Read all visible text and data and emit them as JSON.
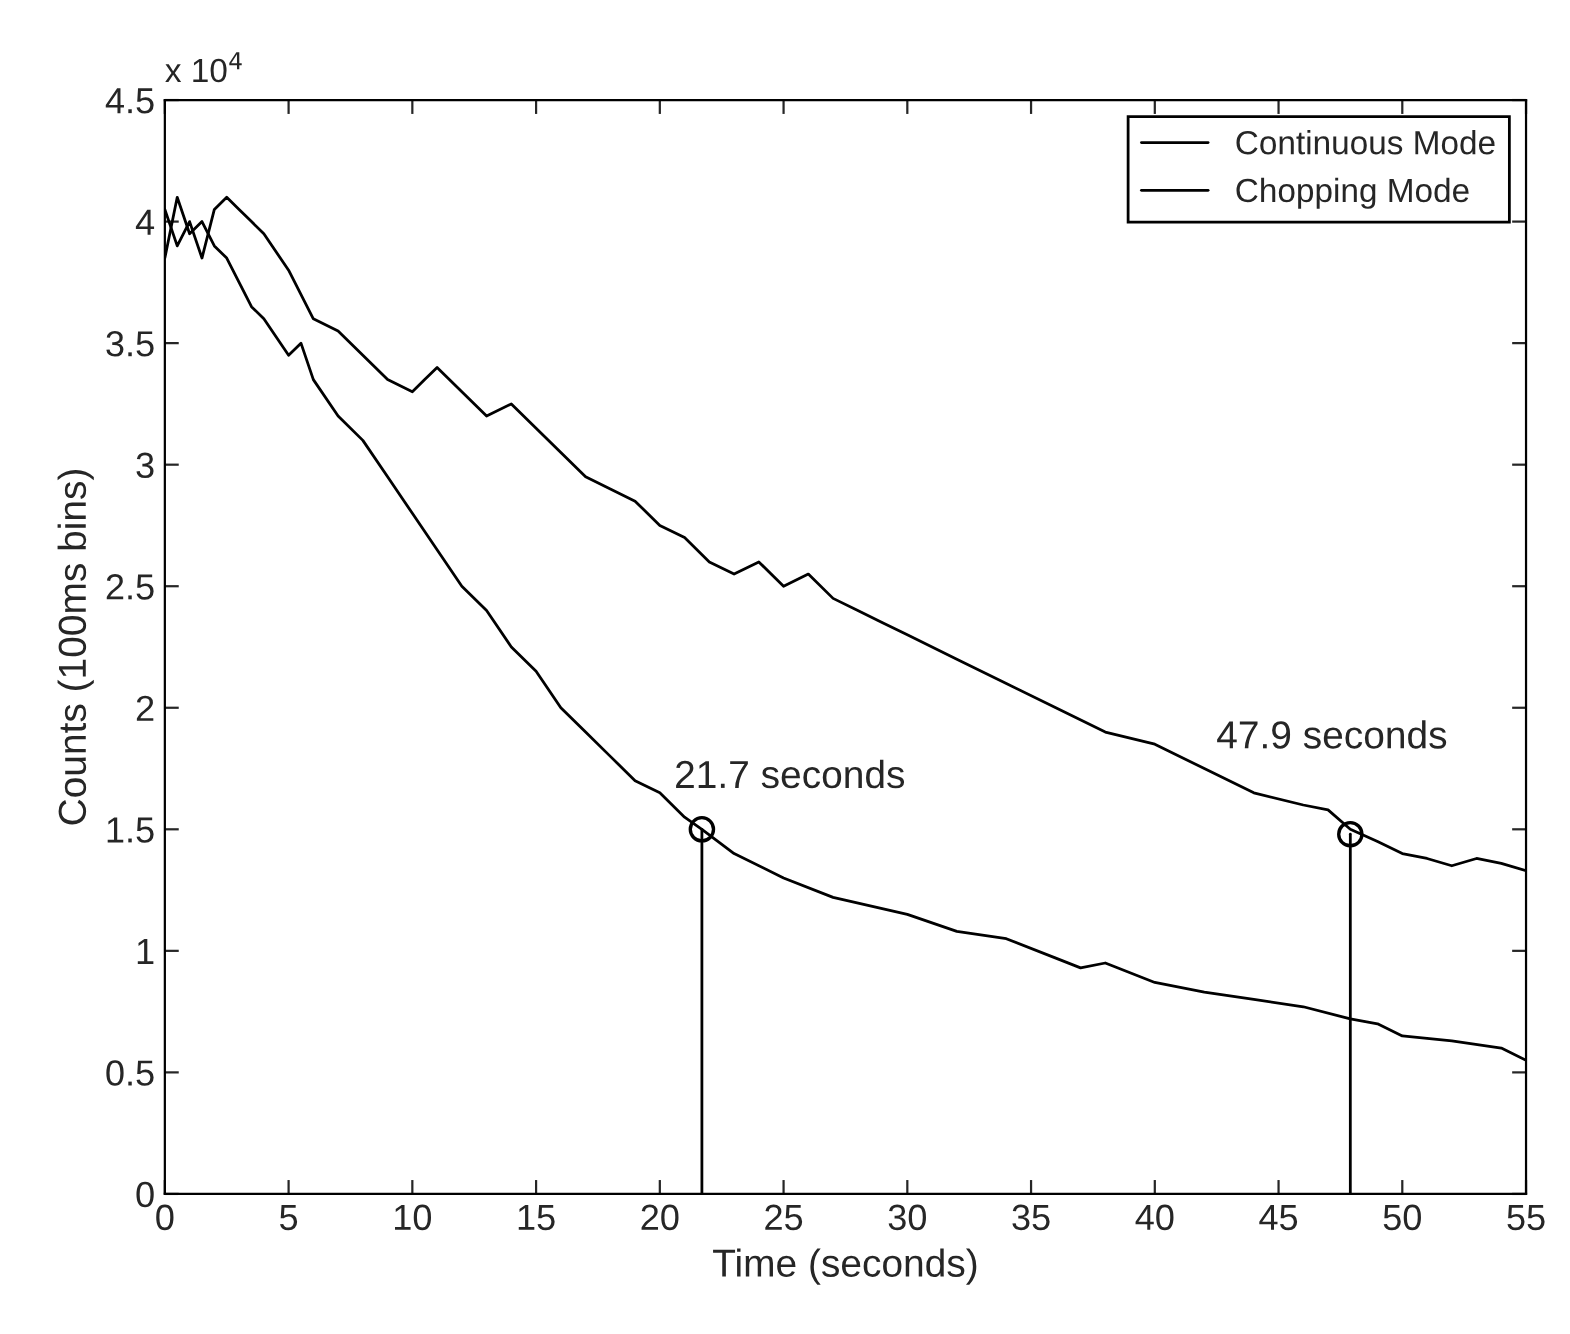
{
  "chart_data": {
    "type": "line",
    "xlabel": "Time (seconds)",
    "ylabel": "Counts (100ms bins)",
    "xlim": [
      0,
      55
    ],
    "xticks": [
      0,
      5,
      10,
      15,
      20,
      25,
      30,
      35,
      40,
      45,
      50,
      55
    ],
    "ylim": [
      0,
      4.5
    ],
    "yticks": [
      0,
      0.5,
      1,
      1.5,
      2,
      2.5,
      3,
      3.5,
      4,
      4.5
    ],
    "grid": false,
    "legend": "top right",
    "marker": "none",
    "line_style": "solid",
    "annotations": [
      "x 10$^{4}$",
      {
        "text": "21.7 seconds",
        "x": 21.7,
        "y": 1.5
      },
      {
        "text": "47.9 seconds",
        "x": 47.9,
        "y": 1.48
      }
    ],
    "series": [
      {
        "name": "Continuous Mode",
        "color": "#000000",
        "x": [
          0,
          0.5,
          1,
          1.5,
          2,
          2.5,
          3,
          3.5,
          4,
          5,
          6,
          7,
          8,
          9,
          10,
          10.5,
          11,
          12,
          13,
          14,
          15,
          16,
          17,
          18,
          19,
          20,
          21,
          22,
          23,
          24,
          25,
          26,
          27,
          28,
          29,
          30,
          32,
          34,
          36,
          38,
          40,
          42,
          44,
          46,
          47,
          47.9,
          49,
          50,
          51,
          52,
          53,
          54,
          55
        ],
        "values": [
          4.05,
          3.9,
          4.0,
          3.85,
          4.05,
          4.1,
          4.05,
          4.0,
          3.95,
          3.8,
          3.6,
          3.55,
          3.45,
          3.35,
          3.3,
          3.35,
          3.4,
          3.3,
          3.2,
          3.25,
          3.15,
          3.05,
          2.95,
          2.9,
          2.85,
          2.75,
          2.7,
          2.6,
          2.55,
          2.6,
          2.5,
          2.55,
          2.45,
          2.4,
          2.35,
          2.3,
          2.2,
          2.1,
          2.0,
          1.9,
          1.85,
          1.75,
          1.65,
          1.6,
          1.58,
          1.5,
          1.45,
          1.4,
          1.38,
          1.35,
          1.38,
          1.36,
          1.33
        ]
      },
      {
        "color": "#000000",
        "x": [
          21.7,
          21.7
        ],
        "values": [
          0,
          1.5
        ]
      },
      {
        "color": "#000000",
        "x": [
          47.9,
          47.9
        ],
        "values": [
          0,
          1.48
        ]
      },
      {
        "type": "scatter",
        "marker": "circle",
        "color": "#000000",
        "x": [
          21.7,
          47.9
        ],
        "values": [
          1.5,
          1.48
        ]
      },
      {
        "name": "Chopping Mode",
        "color": "#000000",
        "x": [
          0,
          0.5,
          1,
          1.5,
          2,
          2.5,
          3,
          3.5,
          4,
          5,
          5.5,
          6,
          7,
          8,
          9,
          10,
          11,
          12,
          13,
          14,
          15,
          16,
          17,
          18,
          19,
          20,
          21,
          21.7,
          23,
          25,
          27,
          30,
          32,
          34,
          36,
          37,
          38,
          40,
          42,
          44,
          46,
          47.9,
          49,
          50,
          52,
          54,
          55
        ],
        "values": [
          3.85,
          4.1,
          3.95,
          4.0,
          3.9,
          3.85,
          3.75,
          3.65,
          3.6,
          3.45,
          3.5,
          3.35,
          3.2,
          3.1,
          2.95,
          2.8,
          2.65,
          2.5,
          2.4,
          2.25,
          2.15,
          2.0,
          1.9,
          1.8,
          1.7,
          1.65,
          1.55,
          1.5,
          1.4,
          1.3,
          1.22,
          1.15,
          1.08,
          1.05,
          0.97,
          0.93,
          0.95,
          0.87,
          0.83,
          0.8,
          0.77,
          0.72,
          0.7,
          0.65,
          0.63,
          0.6,
          0.55
        ]
      }
    ]
  }
}
